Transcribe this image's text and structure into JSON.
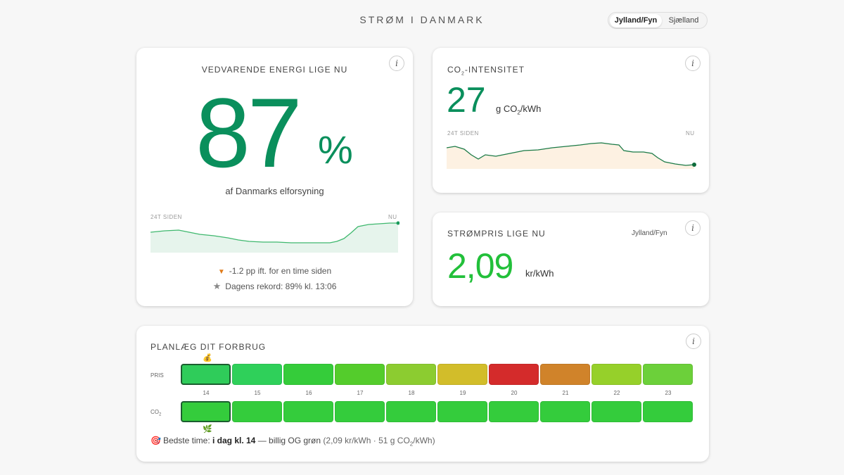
{
  "header": {
    "title": "STRØM I DANMARK",
    "regions": [
      "Jylland/Fyn",
      "Sjælland"
    ],
    "active_region": "Jylland/Fyn"
  },
  "renewable": {
    "heading": "VEDVARENDE ENERGI LIGE NU",
    "value": "87",
    "unit": "%",
    "subline": "af Danmarks elforsyning",
    "axis_left": "24T SIDEN",
    "axis_right": "NU",
    "change_text": "-1.2 pp ift. for en time siden",
    "record_text": "Dagens rekord: 89% kl. 13:06",
    "info_icon": "info-icon",
    "color": "#0a8f5c"
  },
  "co2": {
    "heading_pre": "CO",
    "heading_sub": "2",
    "heading_post": "-INTENSITET",
    "value": "27",
    "unit_pre": "g CO",
    "unit_sub": "2",
    "unit_post": "/kWh",
    "axis_left": "24T SIDEN",
    "axis_right": "NU",
    "color": "#0a8f5c"
  },
  "price": {
    "heading": "STRØMPRIS LIGE NU",
    "region": "Jylland/Fyn",
    "value": "2,09",
    "unit": "kr/kWh",
    "color": "#22c03a"
  },
  "plan": {
    "heading": "PLANLÆG DIT FORBRUG",
    "row_price_label": "PRIS",
    "row_co2_label_pre": "CO",
    "row_co2_label_sub": "2",
    "hours": [
      "14",
      "15",
      "16",
      "17",
      "18",
      "19",
      "20",
      "21",
      "22",
      "23"
    ],
    "price_colors": [
      "#2fcc5a",
      "#2fd05a",
      "#35cc3a",
      "#54cc2c",
      "#8ccc30",
      "#d2bd2a",
      "#d42b2b",
      "#d0832a",
      "#96d02a",
      "#6cd03a"
    ],
    "co2_colors": [
      "#34cc3c",
      "#34cc3c",
      "#34cc3c",
      "#34cc3c",
      "#34cc3c",
      "#34cc3c",
      "#34cc3c",
      "#34cc3c",
      "#34cc3c",
      "#34cc3c"
    ],
    "best_index": 0,
    "money_icon": "money-bag-icon",
    "leaf_icon": "herb-icon",
    "best_label": "Bedste time:",
    "best_when": "i dag kl. 14",
    "best_desc": "— billig OG grøn",
    "best_detail_pre": "(2,09 kr/kWh · 51 g CO",
    "best_detail_sub": "2",
    "best_detail_post": "/kWh)",
    "target_icon": "target-icon"
  }
}
